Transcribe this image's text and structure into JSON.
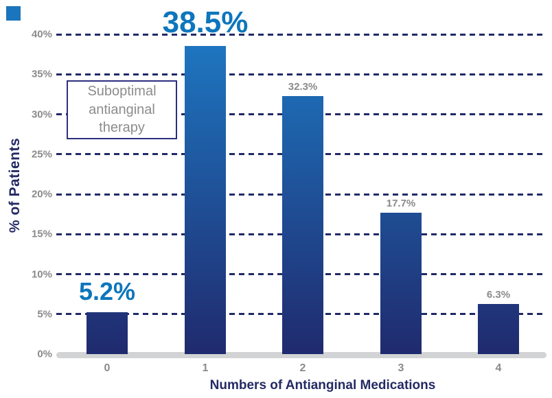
{
  "chart_data": {
    "type": "bar",
    "title": "",
    "xlabel": "Numbers of Antianginal Medications",
    "ylabel": "% of Patients",
    "categories": [
      "0",
      "1",
      "2",
      "3",
      "4"
    ],
    "values": [
      5.2,
      38.5,
      32.3,
      17.7,
      6.3
    ],
    "value_labels": [
      "5.2%",
      "38.5%",
      "32.3%",
      "17.7%",
      "6.3%"
    ],
    "label_styles": [
      "large",
      "xlarge",
      "small",
      "small",
      "small"
    ],
    "ylim": [
      0,
      40
    ],
    "yticks": [
      0,
      5,
      10,
      15,
      20,
      25,
      30,
      35,
      40
    ],
    "ytick_labels": [
      "0%",
      "5%",
      "10%",
      "15%",
      "20%",
      "25%",
      "30%",
      "35%",
      "40%"
    ],
    "grid": "horizontal-dashed",
    "legend": "none",
    "annotation": "Suboptimal antianginal therapy"
  },
  "colors": {
    "value_label_blue": "#0d76bc",
    "grid_navy": "#1f2a66",
    "axis_title_navy": "#242a64",
    "tick_gray": "#8a8a8d",
    "annotation_text_gray": "#8c8c8e",
    "annotation_border_navy": "#2d2f80",
    "bar_gradient_top": "#1e78c2",
    "bar_gradient_bottom": "#202a6e",
    "baseline_gray": "#d2d3d4",
    "corner_square_blue": "#1b75bc"
  }
}
